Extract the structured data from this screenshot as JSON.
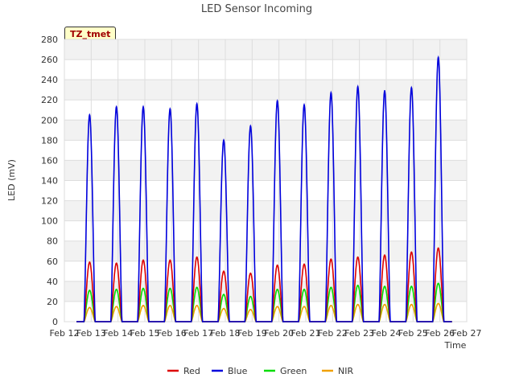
{
  "chart_data": {
    "type": "line",
    "title": "LED Sensor Incoming",
    "xlabel": "Time",
    "ylabel": "LED (mV)",
    "badge": "TZ_tmet",
    "ylim": [
      0,
      280
    ],
    "yticks": [
      0,
      20,
      40,
      60,
      80,
      100,
      120,
      140,
      160,
      180,
      200,
      220,
      240,
      260,
      280
    ],
    "x_range": [
      12,
      27
    ],
    "x_tick_labels": [
      "Feb 12",
      "Feb 13",
      "Feb 14",
      "Feb 15",
      "Feb 16",
      "Feb 17",
      "Feb 18",
      "Feb 19",
      "Feb 20",
      "Feb 21",
      "Feb 22",
      "Feb 23",
      "Feb 24",
      "Feb 25",
      "Feb 26",
      "Feb 27"
    ],
    "x_tick_days": [
      12,
      13,
      14,
      15,
      16,
      17,
      18,
      19,
      20,
      21,
      22,
      23,
      24,
      25,
      26,
      27
    ],
    "grid": true,
    "legend_position": "bottom-center",
    "series": [
      {
        "name": "Red",
        "color": "#dd0000",
        "days": [
          13,
          14,
          15,
          16,
          17,
          18,
          19,
          20,
          21,
          22,
          23,
          24,
          25,
          26
        ],
        "daily_peak": [
          59,
          58,
          61,
          61,
          64,
          50,
          48,
          56,
          57,
          62,
          64,
          66,
          69,
          73
        ]
      },
      {
        "name": "Blue",
        "color": "#0000dd",
        "days": [
          13,
          14,
          15,
          16,
          17,
          18,
          19,
          20,
          21,
          22,
          23,
          24,
          25,
          26
        ],
        "daily_peak": [
          205,
          213,
          213,
          211,
          216,
          180,
          194,
          219,
          215,
          227,
          233,
          229,
          232,
          262
        ]
      },
      {
        "name": "Green",
        "color": "#00dd00",
        "days": [
          13,
          14,
          15,
          16,
          17,
          18,
          19,
          20,
          21,
          22,
          23,
          24,
          25,
          26
        ],
        "daily_peak": [
          31,
          32,
          33,
          33,
          34,
          27,
          25,
          32,
          32,
          34,
          36,
          35,
          35,
          38
        ]
      },
      {
        "name": "NIR",
        "color": "#f0a000",
        "days": [
          13,
          14,
          15,
          16,
          17,
          18,
          19,
          20,
          21,
          22,
          23,
          24,
          25,
          26
        ],
        "daily_peak": [
          14,
          15,
          16,
          16,
          16,
          13,
          12,
          15,
          15,
          16,
          17,
          17,
          17,
          18
        ]
      }
    ]
  }
}
